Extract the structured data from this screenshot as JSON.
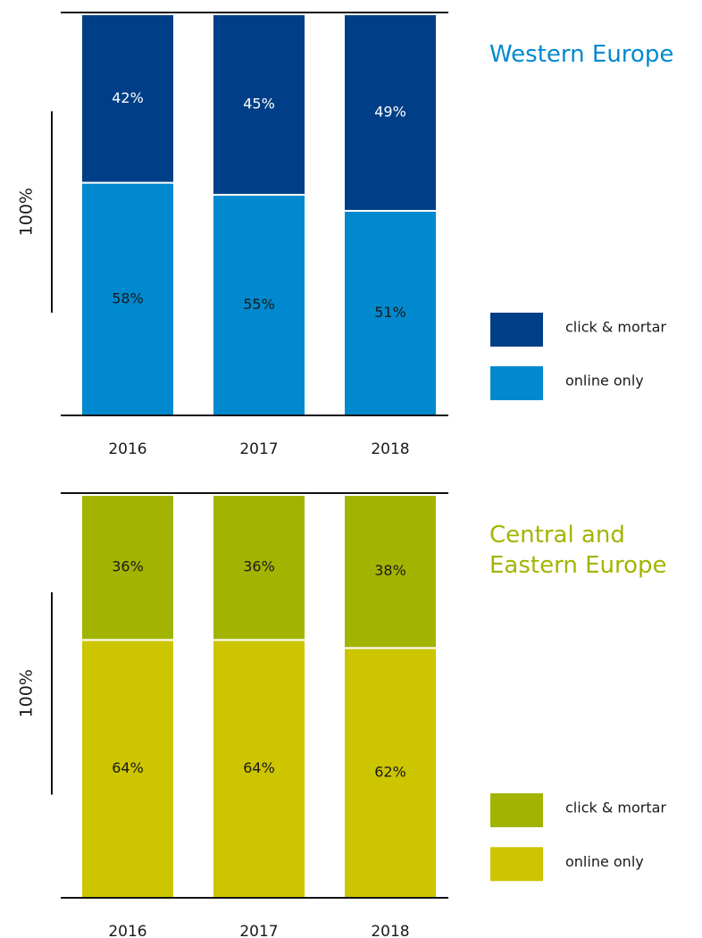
{
  "chart_data": [
    {
      "type": "bar",
      "stacked": true,
      "title": "Western Europe",
      "y_label": "100%",
      "categories": [
        "2016",
        "2017",
        "2018"
      ],
      "series": [
        {
          "name": "online only",
          "color": "#0089cf",
          "values": [
            58,
            55,
            51
          ],
          "value_labels": [
            "58%",
            "55%",
            "51%"
          ]
        },
        {
          "name": "click & mortar",
          "color": "#003f87",
          "values": [
            42,
            45,
            49
          ],
          "value_labels": [
            "42%",
            "45%",
            "49%"
          ]
        }
      ],
      "ylim": [
        0,
        100
      ],
      "title_color": "#0089cf"
    },
    {
      "type": "bar",
      "stacked": true,
      "title": "Central and Eastern Europe",
      "y_label": "100%",
      "categories": [
        "2016",
        "2017",
        "2018"
      ],
      "series": [
        {
          "name": "online only",
          "color": "#cdc500",
          "values": [
            64,
            64,
            62
          ],
          "value_labels": [
            "64%",
            "64%",
            "62%"
          ]
        },
        {
          "name": "click & mortar",
          "color": "#a3b400",
          "values": [
            36,
            36,
            38
          ],
          "value_labels": [
            "36%",
            "36%",
            "38%"
          ]
        }
      ],
      "ylim": [
        0,
        100
      ],
      "title_color": "#a3b400"
    }
  ]
}
